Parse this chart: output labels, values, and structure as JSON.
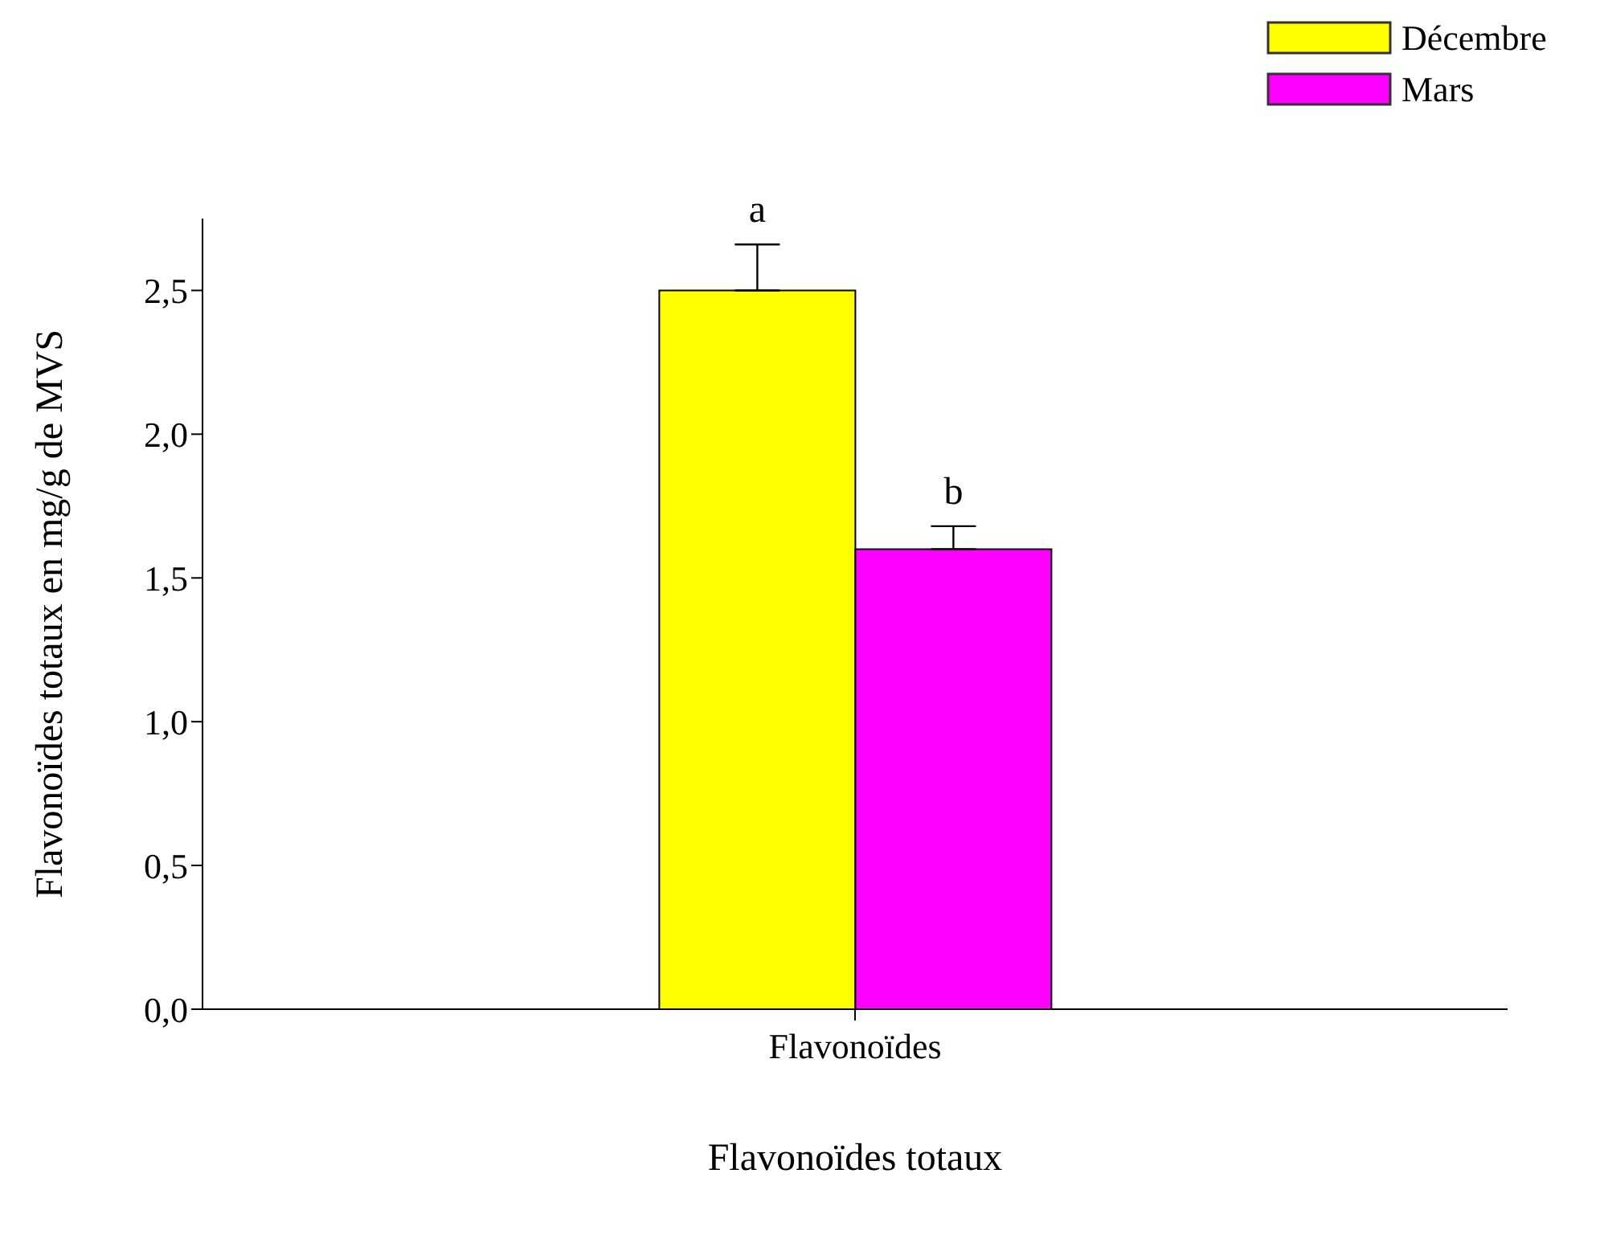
{
  "chart_data": {
    "type": "bar",
    "xlabel": "Flavonoïdes totaux",
    "ylabel": "Flavonoïdes totaux en mg/g de MVS",
    "categories": [
      "Flavonoïdes"
    ],
    "series": [
      {
        "name": "Décembre",
        "color": "#ffff00",
        "values": [
          2.5
        ],
        "errors": [
          0.16
        ]
      },
      {
        "name": "Mars",
        "color": "#ff00ff",
        "values": [
          1.6
        ],
        "errors": [
          0.08
        ]
      }
    ],
    "annotations": [
      "a",
      "b"
    ],
    "ylim": [
      0,
      2.75
    ],
    "yticks": [
      {
        "value": 0,
        "label": "0,0"
      },
      {
        "value": 0.5,
        "label": "0,5"
      },
      {
        "value": 1,
        "label": "1,0"
      },
      {
        "value": 1.5,
        "label": "1,5"
      },
      {
        "value": 2,
        "label": "2,0"
      },
      {
        "value": 2.5,
        "label": "2,5"
      }
    ],
    "grid": false,
    "legend": "top right"
  }
}
